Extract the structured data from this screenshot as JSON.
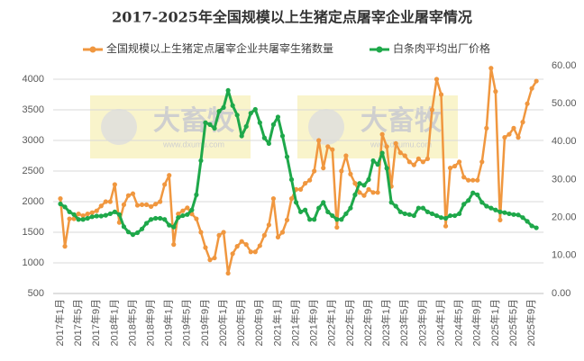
{
  "chart_data": {
    "type": "line",
    "title": "2017-2025年全国规模以上生猪定点屠宰企业屠宰情况",
    "watermark": "大畜牧",
    "watermark_url": "www.dxumu.com",
    "categories": [
      "2017年1月",
      null,
      null,
      null,
      "2017年5月",
      null,
      null,
      null,
      "2017年9月",
      null,
      null,
      null,
      "2018年1月",
      null,
      null,
      null,
      "2018年5月",
      null,
      null,
      null,
      "2018年9月",
      null,
      null,
      null,
      "2019年1月",
      null,
      null,
      null,
      "2019年5月",
      null,
      null,
      null,
      "2019年9月",
      null,
      null,
      null,
      "2020年1月",
      null,
      null,
      null,
      "2020年5月",
      null,
      null,
      null,
      "2020年9月",
      null,
      null,
      null,
      "2021年1月",
      null,
      null,
      null,
      "2021年5月",
      null,
      null,
      null,
      "2021年9月",
      null,
      null,
      null,
      "2022年1月",
      null,
      null,
      null,
      "2022年5月",
      null,
      null,
      null,
      "2022年9月",
      null,
      null,
      null,
      "2023年1月",
      null,
      null,
      null,
      "2023年5月",
      null,
      null,
      null,
      "2023年9月",
      null,
      null,
      null,
      "2024年1月",
      null,
      null,
      null,
      "2024年5月",
      null,
      null,
      null,
      "2024年9月",
      null,
      null,
      null,
      "2025年1月",
      null,
      null,
      null,
      "2025年5月",
      null,
      null,
      null,
      "2025年9月",
      null
    ],
    "series": [
      {
        "name": "全国规模以上生猪定点屠宰企业共屠宰生猪数量",
        "color": "#f0973f",
        "axis": "y",
        "values": [
          2050,
          1270,
          1720,
          1720,
          1800,
          1770,
          1800,
          1820,
          1850,
          1930,
          2000,
          2000,
          2280,
          1660,
          1950,
          2100,
          2130,
          1940,
          1950,
          1950,
          1920,
          1960,
          2000,
          2280,
          2430,
          1300,
          1800,
          1850,
          1900,
          1800,
          1720,
          1500,
          1250,
          1050,
          1080,
          1450,
          1500,
          830,
          1150,
          1270,
          1350,
          1300,
          1180,
          1180,
          1280,
          1450,
          1620,
          2050,
          1420,
          1500,
          1700,
          2050,
          2200,
          2200,
          2300,
          2350,
          2500,
          3000,
          2550,
          2900,
          2850,
          1580,
          2500,
          2750,
          2450,
          2300,
          2150,
          2100,
          2200,
          2150,
          2150,
          3100,
          2900,
          2250,
          2950,
          2800,
          2750,
          2650,
          2600,
          2700,
          2650,
          2700,
          3500,
          4000,
          3750,
          1600,
          2550,
          2580,
          2650,
          2400,
          2350,
          2350,
          2350,
          2650,
          3200,
          4180,
          3800,
          1700,
          3050,
          3100,
          3200,
          3050,
          3300,
          3600,
          3850,
          3970
        ]
      },
      {
        "name": "白条肉平均出厂价格",
        "color": "#1ea84a",
        "axis": "y2",
        "values": [
          23.6,
          22.8,
          21.5,
          20.8,
          19.5,
          19.5,
          19.8,
          20.2,
          20.4,
          20.4,
          20.6,
          21.0,
          21.5,
          20.8,
          17.6,
          16.2,
          15.5,
          16.0,
          17.0,
          18.5,
          19.5,
          19.8,
          19.8,
          19.5,
          18.0,
          17.5,
          20.0,
          20.5,
          20.8,
          22.0,
          26.0,
          35.0,
          45.0,
          44.5,
          43.5,
          48.0,
          49.0,
          53.5,
          49.5,
          47.0,
          41.5,
          44.0,
          47.5,
          48.5,
          45.0,
          41.0,
          39.5,
          44.5,
          46.5,
          41.5,
          36.0,
          30.0,
          24.0,
          21.5,
          22.0,
          19.5,
          19.5,
          22.5,
          24.0,
          21.5,
          20.5,
          19.5,
          19.5,
          21.0,
          22.5,
          26.0,
          29.0,
          28.5,
          30.0,
          35.0,
          34.0,
          37.0,
          33.0,
          24.0,
          23.0,
          21.5,
          21.0,
          20.8,
          20.5,
          22.5,
          22.5,
          21.5,
          21.0,
          20.5,
          20.0,
          19.8,
          20.5,
          20.5,
          21.0,
          23.5,
          24.5,
          26.5,
          26.0,
          24.0,
          23.0,
          22.5,
          22.0,
          21.5,
          21.3,
          21.0,
          20.8,
          20.7,
          20.0,
          19.0,
          17.8,
          17.3
        ]
      }
    ],
    "ylim": [
      500,
      4000
    ],
    "yticks": [
      500,
      1000,
      1500,
      2000,
      2500,
      3000,
      3500,
      4000
    ],
    "y2lim": [
      0,
      60
    ],
    "y2ticks": [
      {
        "value": 0,
        "label": "0.00"
      },
      {
        "value": 10,
        "label": "10.00"
      },
      {
        "value": 20,
        "label": "20.00"
      },
      {
        "value": 30,
        "label": "30.00"
      },
      {
        "value": 40,
        "label": "40.00"
      },
      {
        "value": 50,
        "label": "50.00"
      },
      {
        "value": 60,
        "label": "60.00"
      }
    ],
    "grid": true
  }
}
